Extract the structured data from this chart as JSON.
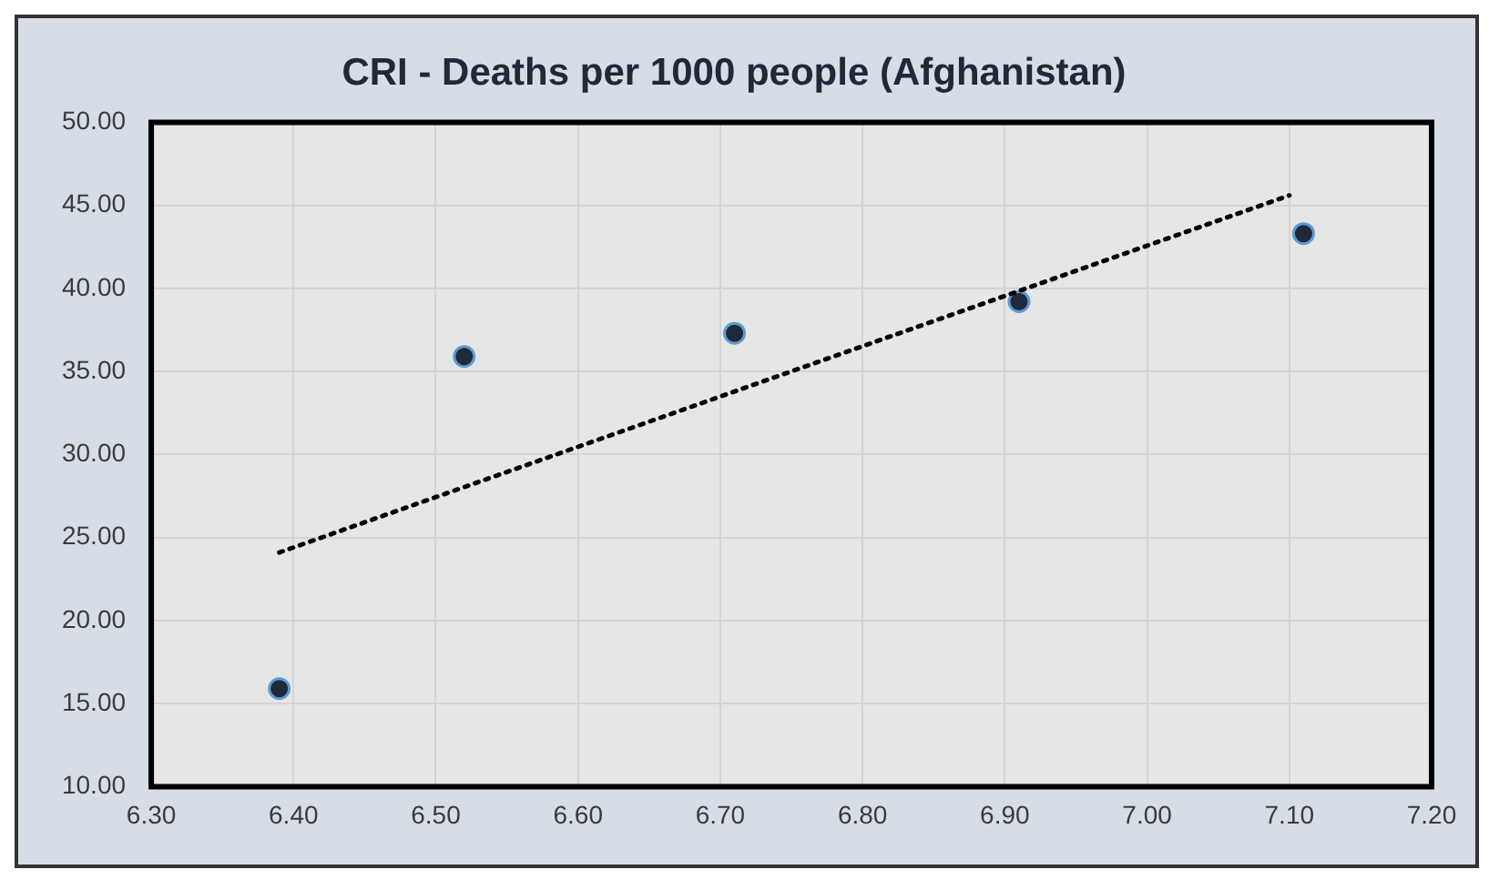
{
  "chart_data": {
    "type": "scatter",
    "title": "CRI - Deaths per 1000 people (Afghanistan)",
    "x": [
      6.39,
      6.52,
      6.71,
      6.91,
      7.11
    ],
    "series": [
      {
        "color": "#1f2937",
        "values": [
          15.9,
          35.9,
          37.3,
          39.2,
          43.3
        ],
        "marker": "circle"
      },
      {
        "type": "line",
        "color": "#000000",
        "x": [
          6.39,
          7.1
        ],
        "values": [
          24.1,
          45.6
        ],
        "line_style": "dotted",
        "marker": "none"
      }
    ],
    "xlim": [
      6.3,
      7.2
    ],
    "xticks": [
      {
        "value": 6.3,
        "label": "6.30"
      },
      {
        "value": 6.4,
        "label": "6.40"
      },
      {
        "value": 6.5,
        "label": "6.50"
      },
      {
        "value": 6.6,
        "label": "6.60"
      },
      {
        "value": 6.7,
        "label": "6.70"
      },
      {
        "value": 6.8,
        "label": "6.80"
      },
      {
        "value": 6.9,
        "label": "6.90"
      },
      {
        "value": 7.0,
        "label": "7.00"
      },
      {
        "value": 7.1,
        "label": "7.10"
      },
      {
        "value": 7.2,
        "label": "7.20"
      }
    ],
    "ylim": [
      10,
      50
    ],
    "yticks": [
      {
        "value": 10,
        "label": "10.00"
      },
      {
        "value": 15,
        "label": "15.00"
      },
      {
        "value": 20,
        "label": "20.00"
      },
      {
        "value": 25,
        "label": "25.00"
      },
      {
        "value": 30,
        "label": "30.00"
      },
      {
        "value": 35,
        "label": "35.00"
      },
      {
        "value": 40,
        "label": "40.00"
      },
      {
        "value": 45,
        "label": "45.00"
      },
      {
        "value": 50,
        "label": "50.00"
      }
    ],
    "grid": true,
    "legend": false
  }
}
